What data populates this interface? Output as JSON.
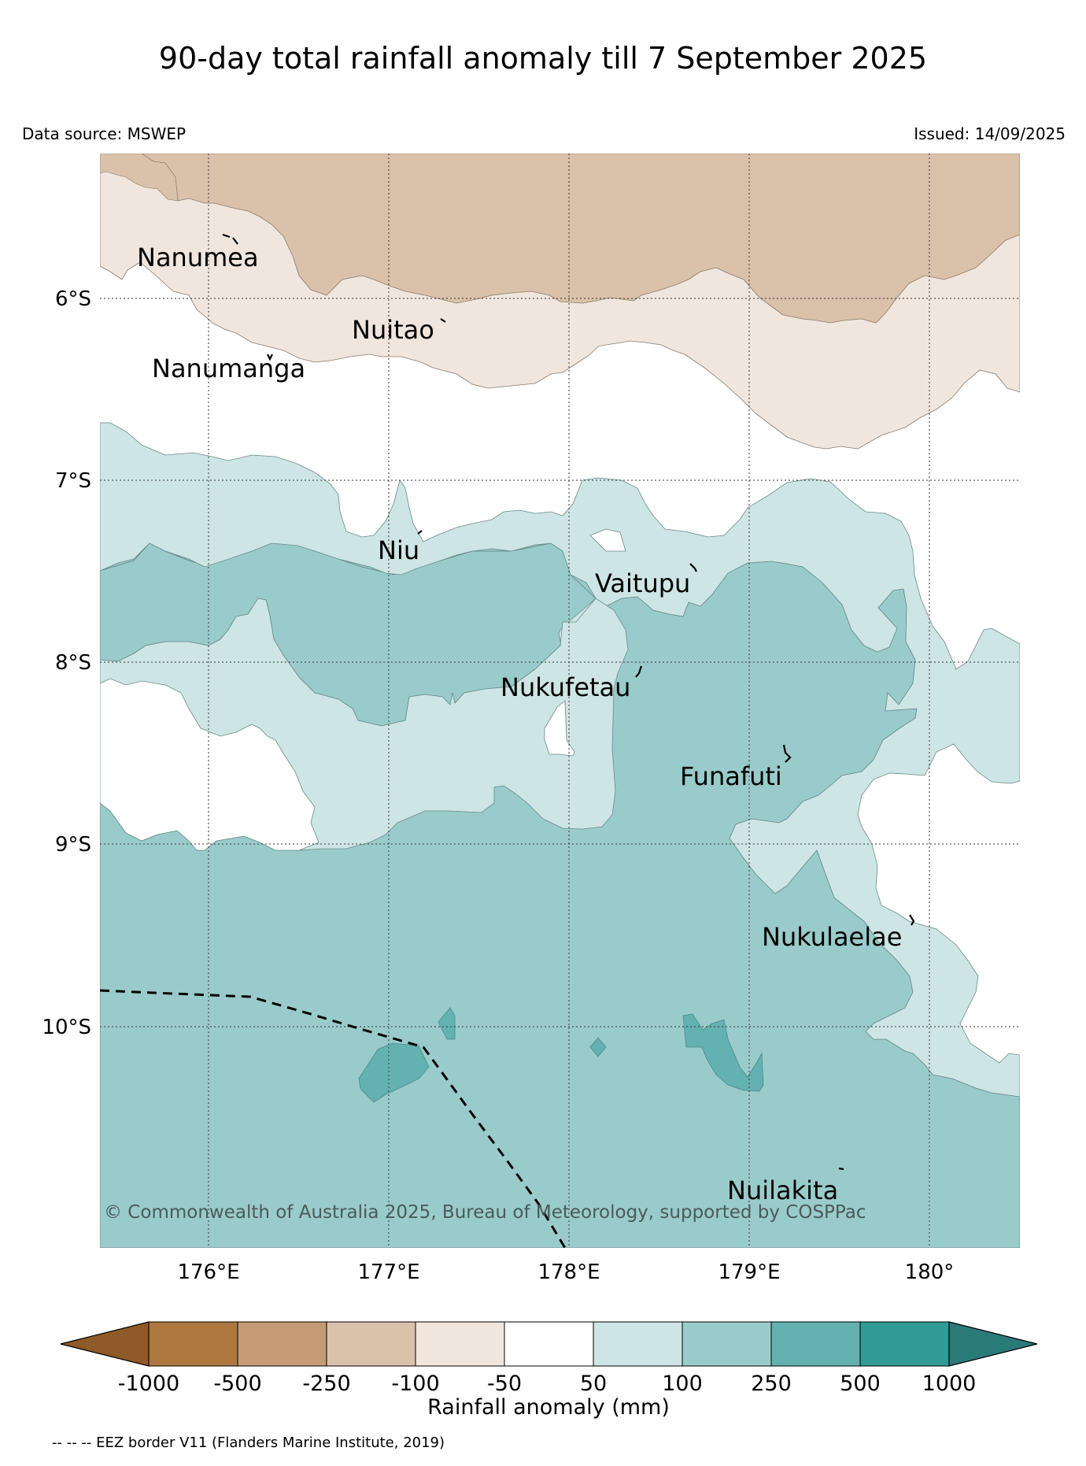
{
  "title": "90-day total rainfall anomaly till 7 September 2025",
  "data_source": "Data source: MSWEP",
  "issued": "Issued: 14/09/2025",
  "map": {
    "lat_labels": [
      "6°S",
      "7°S",
      "8°S",
      "9°S",
      "10°S"
    ],
    "lon_labels": [
      "176°E",
      "177°E",
      "178°E",
      "179°E",
      "180°"
    ],
    "places": [
      "Nanumea",
      "Nuitao",
      "Nanumanga",
      "Niu",
      "Vaitupu",
      "Nukufetau",
      "Funafuti",
      "Nukulaelae",
      "Nuilakita"
    ],
    "copyright": "© Commonwealth of Australia 2025, Bureau of Meteorology, supported by COSPPac",
    "eez_border": "dashed"
  },
  "colorbar": {
    "title": "Rainfall anomaly (mm)",
    "tick_labels": [
      "-1000",
      "-500",
      "-250",
      "-100",
      "-50",
      "50",
      "100",
      "250",
      "500",
      "1000"
    ],
    "colors": [
      "#8f5a28",
      "#ad773f",
      "#c49b74",
      "#dac1aa",
      "#f0e6dd",
      "#ffffff",
      "#cde5e4",
      "#9acbcb",
      "#64b1b1",
      "#2f9a96",
      "#2a7a77"
    ]
  },
  "footnote": "-- -- -- EEZ border V11 (Flanders Marine Institute, 2019)"
}
